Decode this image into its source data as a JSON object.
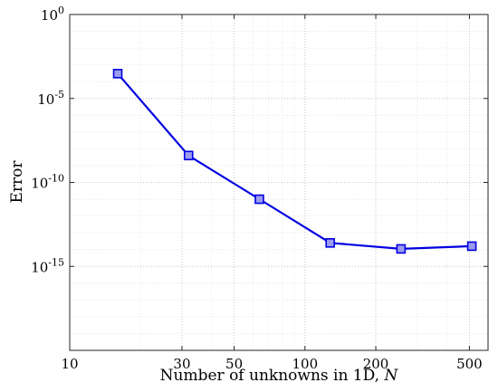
{
  "chart_data": {
    "type": "line",
    "title": "",
    "xlabel": "Number of unknowns in 1D, ",
    "xlabel_var": "N",
    "ylabel": "Error",
    "x_scale": "log",
    "y_scale": "log",
    "xlim": [
      10,
      600
    ],
    "ylim": [
      1e-20,
      1
    ],
    "grid": true,
    "x_ticks": [
      {
        "value": 10,
        "label": "10"
      },
      {
        "value": 30,
        "label": "30"
      },
      {
        "value": 50,
        "label": "50"
      },
      {
        "value": 100,
        "label": "100"
      },
      {
        "value": 200,
        "label": "200"
      },
      {
        "value": 500,
        "label": "500"
      }
    ],
    "y_ticks": [
      {
        "value": 1,
        "base": "10",
        "exp": "0"
      },
      {
        "value": 1e-05,
        "base": "10",
        "exp": "-5"
      },
      {
        "value": 1e-10,
        "base": "10",
        "exp": "-10"
      },
      {
        "value": 1e-15,
        "base": "10",
        "exp": "-15"
      }
    ],
    "series": [
      {
        "color": "#0000e0",
        "marker": "square",
        "x": [
          16,
          32,
          64,
          128,
          256,
          512
        ],
        "y": [
          0.0003,
          4e-09,
          1e-11,
          2.5e-14,
          1.1e-14,
          1.6e-14
        ]
      }
    ]
  }
}
